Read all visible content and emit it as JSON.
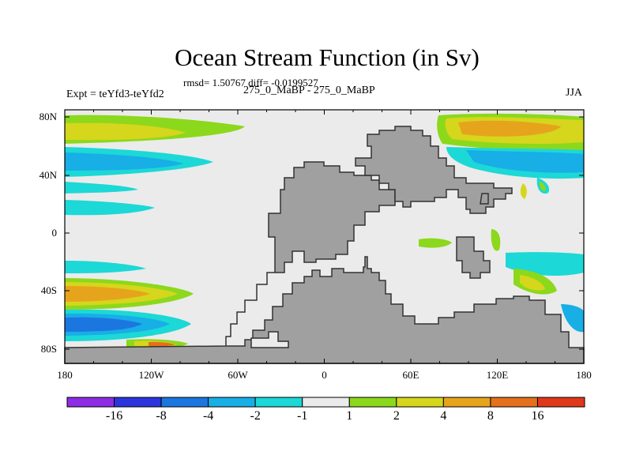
{
  "title": "Ocean Stream Function (in Sv)",
  "stats": "rmsd= 1.50767 diff= -0.0199527",
  "left_label": "Expt = teYfd3-teYfd2",
  "center_label": "275_0_MaBP - 275_0_MaBP",
  "right_label": "JJA",
  "lat_ticks": [
    "80N",
    "40N",
    "0",
    "40S",
    "80S"
  ],
  "lon_ticks": [
    "180",
    "120W",
    "60W",
    "0",
    "60E",
    "120E",
    "180"
  ],
  "colorbar": {
    "colors": [
      "#8d2de6",
      "#2c35dc",
      "#1c76e0",
      "#18aee6",
      "#1cd8d6",
      "#ebebeb",
      "#8cd81c",
      "#d6d61c",
      "#e6a41c",
      "#e4701c",
      "#e0381a"
    ],
    "labels": [
      "-16",
      "-8",
      "-4",
      "-2",
      "-1",
      "1",
      "2",
      "4",
      "8",
      "16"
    ]
  },
  "colors": {
    "ocean": "#ebebeb",
    "land": "#a0a0a0",
    "coast": "#333333"
  }
}
